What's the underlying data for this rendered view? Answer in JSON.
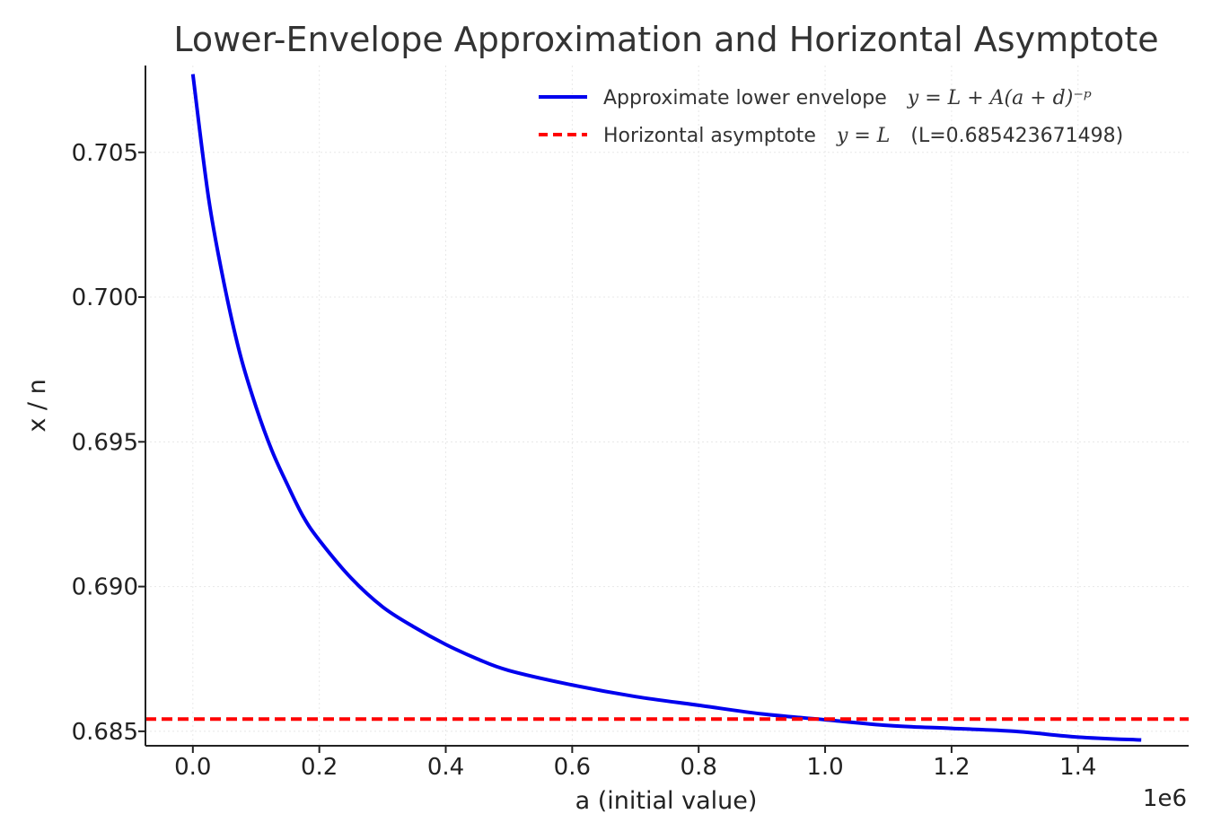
{
  "chart_data": {
    "type": "line",
    "title": "Lower-Envelope Approximation and Horizontal Asymptote",
    "xlabel": "a (initial value)",
    "ylabel": "x / n",
    "x_offset_label": "1e6",
    "xlim": [
      -0.075,
      1.575
    ],
    "ylim": [
      0.6845,
      0.708
    ],
    "x_ticks": [
      0.0,
      0.2,
      0.4,
      0.6,
      0.8,
      1.0,
      1.2,
      1.4
    ],
    "x_tick_labels": [
      "0.0",
      "0.2",
      "0.4",
      "0.6",
      "0.8",
      "1.0",
      "1.2",
      "1.4"
    ],
    "y_ticks": [
      0.685,
      0.69,
      0.695,
      0.7,
      0.705
    ],
    "y_tick_labels": [
      "0.685",
      "0.690",
      "0.695",
      "0.700",
      "0.705"
    ],
    "grid": true,
    "legend_position": "top-right",
    "series": [
      {
        "name": "Approximate lower envelope",
        "name_math": "y = L + A(a + d)⁻ᵖ",
        "color": "#0000ee",
        "style": "solid",
        "x": [
          0.0,
          0.025,
          0.05,
          0.075,
          0.1,
          0.125,
          0.15,
          0.175,
          0.2,
          0.25,
          0.3,
          0.35,
          0.4,
          0.45,
          0.5,
          0.6,
          0.7,
          0.8,
          0.9,
          1.0,
          1.1,
          1.2,
          1.3,
          1.4,
          1.5
        ],
        "y": [
          0.7077,
          0.7034,
          0.7004,
          0.698,
          0.6962,
          0.6947,
          0.6935,
          0.6924,
          0.6916,
          0.6903,
          0.6893,
          0.6886,
          0.688,
          0.6875,
          0.6871,
          0.6866,
          0.6862,
          0.6859,
          0.6856,
          0.6854,
          0.6852,
          0.6851,
          0.685,
          0.6848,
          0.6847
        ]
      },
      {
        "name": "Horizontal asymptote",
        "name_math": "y = L",
        "name_suffix": "(L=0.685423671498)",
        "color": "#ff0000",
        "style": "dashed",
        "value": 0.685423671498
      }
    ]
  }
}
